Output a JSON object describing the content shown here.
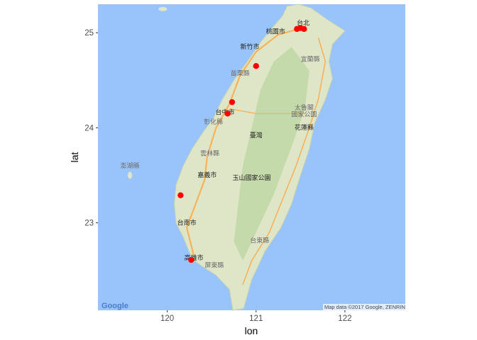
{
  "chart_data": {
    "type": "scatter",
    "xlabel": "lon",
    "ylabel": "lat",
    "xlim": [
      119.22,
      122.68
    ],
    "ylim": [
      22.08,
      25.3
    ],
    "x_ticks": [
      {
        "value": 120,
        "label": "120"
      },
      {
        "value": 121,
        "label": "121"
      },
      {
        "value": 122,
        "label": "122"
      }
    ],
    "y_ticks": [
      {
        "value": 23,
        "label": "23"
      },
      {
        "value": 24,
        "label": "24"
      },
      {
        "value": 25,
        "label": "25"
      }
    ],
    "points": [
      {
        "lon": 121.46,
        "lat": 25.04
      },
      {
        "lon": 121.54,
        "lat": 25.04
      },
      {
        "lon": 121.5,
        "lat": 25.05
      },
      {
        "lon": 121.0,
        "lat": 24.65
      },
      {
        "lon": 120.73,
        "lat": 24.27
      },
      {
        "lon": 120.68,
        "lat": 24.15
      },
      {
        "lon": 120.15,
        "lat": 23.29
      },
      {
        "lon": 120.27,
        "lat": 22.61
      }
    ],
    "point_color": "#ff0000",
    "grid": true
  },
  "basemap": {
    "colors": {
      "sea": "#99c4fb",
      "land": "#dfe6c8",
      "forest": "#bcd6a0",
      "panel": "#ebebeb",
      "road": "#f7b25c"
    },
    "labels": [
      {
        "text": "台北",
        "lon": 121.53,
        "lat": 25.08
      },
      {
        "text": "桃園市",
        "lon": 121.22,
        "lat": 24.99
      },
      {
        "text": "新竹市",
        "lon": 120.93,
        "lat": 24.83
      },
      {
        "text": "苗栗縣",
        "lon": 120.82,
        "lat": 24.55,
        "faint": true
      },
      {
        "text": "宜蘭縣",
        "lon": 121.61,
        "lat": 24.7,
        "faint": true
      },
      {
        "text": "台中市",
        "lon": 120.65,
        "lat": 24.14
      },
      {
        "text": "彰化縣",
        "lon": 120.52,
        "lat": 24.04,
        "faint": true
      },
      {
        "text": "太魯閣",
        "lon": 121.54,
        "lat": 24.19,
        "faint": true
      },
      {
        "text": "國家公園",
        "lon": 121.54,
        "lat": 24.12,
        "faint": true
      },
      {
        "text": "花蓮縣",
        "lon": 121.54,
        "lat": 23.98
      },
      {
        "text": "臺灣",
        "lon": 121.0,
        "lat": 23.9
      },
      {
        "text": "雲林縣",
        "lon": 120.48,
        "lat": 23.71,
        "faint": true
      },
      {
        "text": "澎湖縣",
        "lon": 119.58,
        "lat": 23.58,
        "faint": true
      },
      {
        "text": "嘉義市",
        "lon": 120.45,
        "lat": 23.48
      },
      {
        "text": "玉山國家公園",
        "lon": 120.95,
        "lat": 23.45
      },
      {
        "text": "台南市",
        "lon": 120.22,
        "lat": 22.98
      },
      {
        "text": "台東縣",
        "lon": 121.04,
        "lat": 22.79,
        "faint": true
      },
      {
        "text": "高雄市",
        "lon": 120.3,
        "lat": 22.61
      },
      {
        "text": "屏東縣",
        "lon": 120.53,
        "lat": 22.53,
        "faint": true
      }
    ],
    "google_logo": "Google",
    "attribution": "Map data ©2017 Google, ZENRIN"
  }
}
